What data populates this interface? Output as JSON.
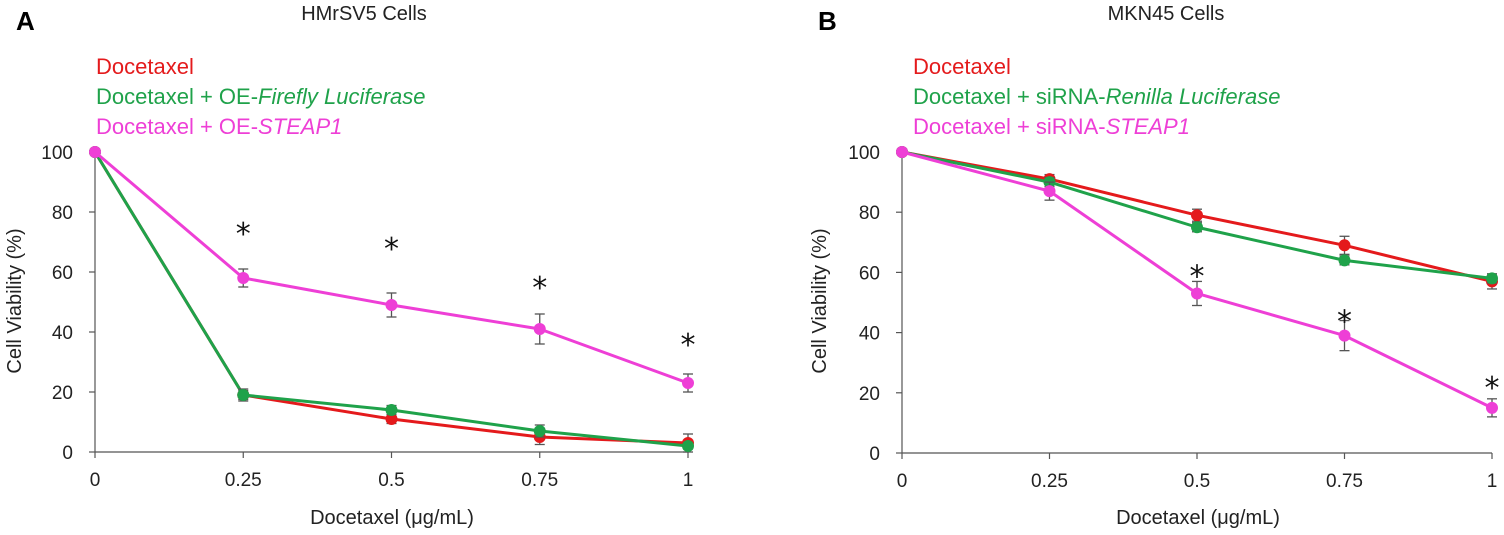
{
  "chart_data": [
    {
      "type": "line",
      "panel_label": "A",
      "title": "HMrSV5 Cells",
      "xlabel": "Docetaxel (μg/mL)",
      "ylabel": "Cell Viability (%)",
      "x": [
        0,
        0.25,
        0.5,
        0.75,
        1
      ],
      "xtick_labels": [
        "0",
        "0.25",
        "0.5",
        "0.75",
        "1"
      ],
      "ylim": [
        0,
        100
      ],
      "yticks": [
        0,
        20,
        40,
        60,
        80,
        100
      ],
      "grid": false,
      "series": [
        {
          "name": "Docetaxel",
          "legend_prefix": "Docetaxel",
          "legend_italic": "",
          "color": "#e41a1c",
          "values": [
            100,
            19,
            11,
            5,
            3
          ],
          "errors": [
            0,
            1.5,
            1.5,
            2.5,
            3
          ]
        },
        {
          "name": "Docetaxel + OE-Firefly Luciferase",
          "legend_prefix": "Docetaxel + OE-",
          "legend_italic": "Firefly Luciferase",
          "color": "#1fa24a",
          "values": [
            100,
            19,
            14,
            7,
            2
          ],
          "errors": [
            0,
            2,
            1.5,
            2,
            1
          ]
        },
        {
          "name": "Docetaxel + OE-STEAP1",
          "legend_prefix": "Docetaxel + OE-",
          "legend_italic": "STEAP1",
          "color": "#ee3fd6",
          "values": [
            100,
            58,
            49,
            41,
            23
          ],
          "errors": [
            0,
            3,
            4,
            5,
            3
          ]
        }
      ],
      "annotations": [
        {
          "text": "*",
          "x": 0.25,
          "y": 74
        },
        {
          "text": "*",
          "x": 0.5,
          "y": 69
        },
        {
          "text": "*",
          "x": 0.75,
          "y": 56
        },
        {
          "text": "*",
          "x": 1,
          "y": 37
        }
      ]
    },
    {
      "type": "line",
      "panel_label": "B",
      "title": "MKN45 Cells",
      "xlabel": "Docetaxel (μg/mL)",
      "ylabel": "Cell Viability (%)",
      "x": [
        0,
        0.25,
        0.5,
        0.75,
        1
      ],
      "xtick_labels": [
        "0",
        "0.25",
        "0.5",
        "0.75",
        "1"
      ],
      "ylim": [
        0,
        100
      ],
      "yticks": [
        0,
        20,
        40,
        60,
        80,
        100
      ],
      "grid": false,
      "series": [
        {
          "name": "Docetaxel",
          "legend_prefix": "Docetaxel",
          "legend_italic": "",
          "color": "#e41a1c",
          "values": [
            100,
            91,
            79,
            69,
            57
          ],
          "errors": [
            0,
            1.5,
            2,
            3,
            2.5
          ]
        },
        {
          "name": "Docetaxel + siRNA-Renilla Luciferase",
          "legend_prefix": "Docetaxel + siRNA-",
          "legend_italic": "Renilla Luciferase",
          "color": "#1fa24a",
          "values": [
            100,
            90,
            75,
            64,
            58
          ],
          "errors": [
            0,
            1.5,
            1.5,
            1.5,
            1.5
          ]
        },
        {
          "name": "Docetaxel + siRNA-STEAP1",
          "legend_prefix": "Docetaxel + siRNA-",
          "legend_italic": "STEAP1",
          "color": "#ee3fd6",
          "values": [
            100,
            87,
            53,
            39,
            15
          ],
          "errors": [
            0,
            3,
            4,
            5,
            3
          ]
        }
      ],
      "annotations": [
        {
          "text": "*",
          "x": 0.5,
          "y": 60
        },
        {
          "text": "*",
          "x": 0.75,
          "y": 45
        },
        {
          "text": "*",
          "x": 1,
          "y": 23
        }
      ]
    }
  ]
}
